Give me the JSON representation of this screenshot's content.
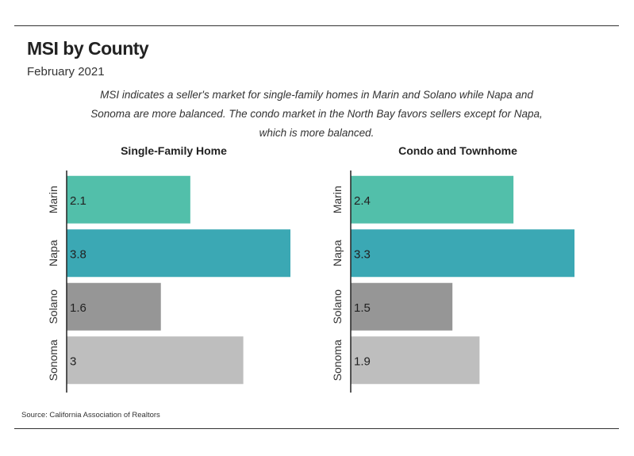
{
  "header": {
    "title": "MSI by County",
    "subtitle": "February 2021",
    "description": "MSI indicates a seller's market for single-family homes in Marin and Solano while Napa and Sonoma are more balanced. The condo market in the North Bay favors sellers except for Napa, which is more balanced."
  },
  "footer": {
    "source": "Source:  California Association of Realtors"
  },
  "colors": {
    "Marin": "#52bfaa",
    "Napa": "#3ba8b4",
    "Solano": "#969696",
    "Sonoma": "#bebebe"
  },
  "chart_data": [
    {
      "type": "bar",
      "orientation": "horizontal",
      "title": "Single-Family Home",
      "categories": [
        "Marin",
        "Napa",
        "Solano",
        "Sonoma"
      ],
      "values": [
        2.1,
        3.8,
        1.6,
        3
      ],
      "value_labels": [
        "2.1",
        "3.8",
        "1.6",
        "3"
      ],
      "xlim": [
        0,
        3.8
      ],
      "grid": false
    },
    {
      "type": "bar",
      "orientation": "horizontal",
      "title": "Condo and Townhome",
      "categories": [
        "Marin",
        "Napa",
        "Solano",
        "Sonoma"
      ],
      "values": [
        2.4,
        3.3,
        1.5,
        1.9
      ],
      "value_labels": [
        "2.4",
        "3.3",
        "1.5",
        "1.9"
      ],
      "xlim": [
        0,
        3.3
      ],
      "grid": false
    }
  ]
}
